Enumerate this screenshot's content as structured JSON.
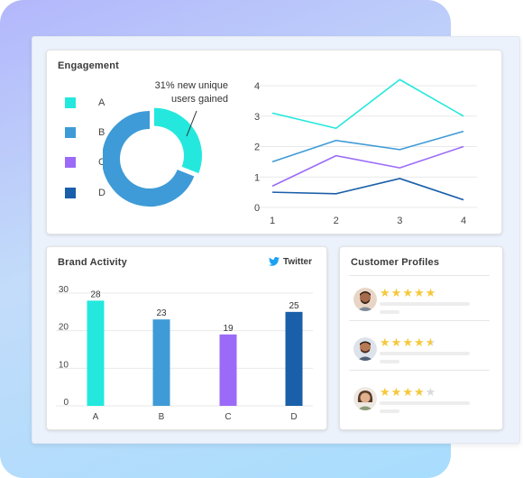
{
  "engagement": {
    "title": "Engagement",
    "annotation_line1": "31% new unique",
    "annotation_line2": "users gained",
    "legend": [
      {
        "label": "A",
        "color": "#24e8dd"
      },
      {
        "label": "B",
        "color": "#3e9bd7"
      },
      {
        "label": "C",
        "color": "#9b6bf7"
      },
      {
        "label": "D",
        "color": "#1a5fa9"
      }
    ]
  },
  "brand_activity": {
    "title": "Brand Activity",
    "source_label": "Twitter",
    "source_icon": "twitter-icon",
    "accent": "#1da1f2"
  },
  "customer_profiles": {
    "title": "Customer Profiles",
    "profiles": [
      {
        "rating": 5
      },
      {
        "rating": 4.5
      },
      {
        "rating": 4
      }
    ]
  },
  "chart_data": [
    {
      "type": "pie",
      "variant": "donut",
      "values": [
        31,
        69
      ],
      "colors": [
        "#24e8dd",
        "#3e9bd7"
      ]
    },
    {
      "type": "line",
      "x": [
        1,
        2,
        3,
        4
      ],
      "ylim": [
        0,
        4
      ],
      "yticks": [
        0,
        1,
        2,
        3,
        4
      ],
      "grid": true,
      "series": [
        {
          "values": [
            3.1,
            2.6,
            4.2,
            3.0
          ],
          "color": "#24e8dd"
        },
        {
          "values": [
            1.5,
            2.2,
            1.9,
            2.5
          ],
          "color": "#3e9bd7"
        },
        {
          "values": [
            0.7,
            1.7,
            1.3,
            2.0
          ],
          "color": "#9b6bf7"
        },
        {
          "values": [
            0.5,
            0.45,
            0.95,
            0.25
          ],
          "color": "#1a5fa9"
        }
      ]
    },
    {
      "type": "bar",
      "categories": [
        "A",
        "B",
        "C",
        "D"
      ],
      "values": [
        28,
        23,
        19,
        25
      ],
      "colors": [
        "#24e8dd",
        "#3e9bd7",
        "#9b6bf7",
        "#1a5fa9"
      ],
      "ylim": [
        0,
        30
      ],
      "yticks": [
        0,
        10,
        20,
        30
      ],
      "grid": true
    }
  ]
}
